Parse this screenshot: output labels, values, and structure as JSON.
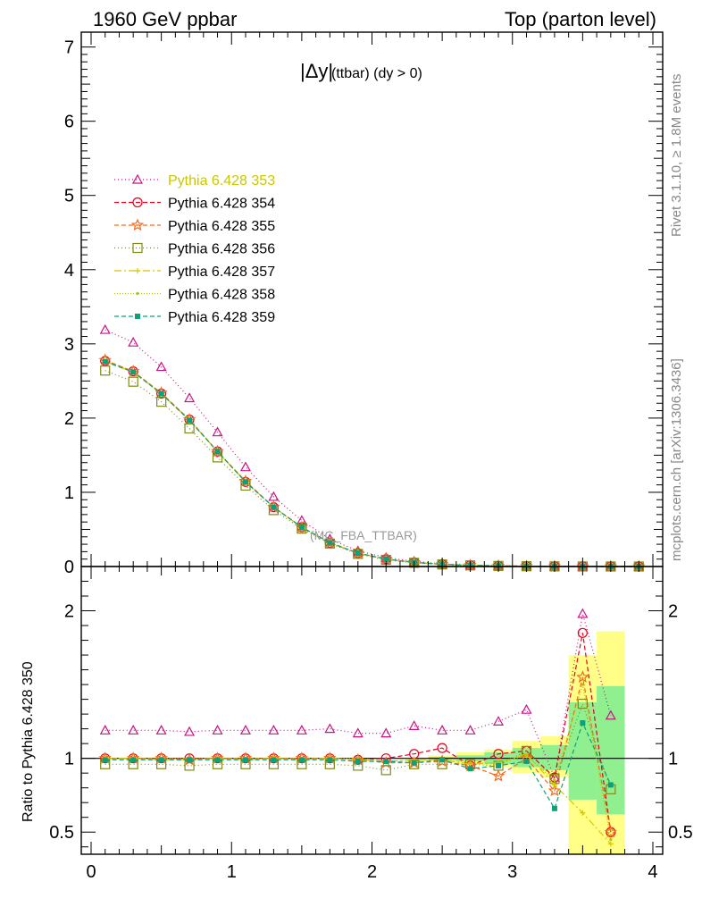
{
  "header": {
    "left": "1960 GeV ppbar",
    "right": "Top (parton level)"
  },
  "plot_title": {
    "main": "|Δy|",
    "sub": "(ttbar) (dy > 0)"
  },
  "side_labels": {
    "rivet": "Rivet 3.1.10, ≥ 1.8M events",
    "mcplots": "mcplots.cern.ch [arXiv:1306.3436]"
  },
  "analysis_label": "(MC_FBA_TTBAR)",
  "ratio_ylabel": "Ratio to Pythia 6.428 350",
  "colors": {
    "s353": "#c71585",
    "s354": "#e3001b",
    "s355": "#f26a1b",
    "s356": "#808a18",
    "s357": "#d8c800",
    "s358": "#b4c800",
    "s359": "#10a078",
    "band_yellow": "#ffff88",
    "band_green": "#90f090"
  },
  "chart_data": [
    {
      "type": "line",
      "panel": "main",
      "xlim": [
        -0.07,
        4.07
      ],
      "ylim": [
        0,
        7.2
      ],
      "yticks": [
        "0",
        "1",
        "2",
        "3",
        "4",
        "5",
        "6",
        "7"
      ],
      "x": [
        0.1,
        0.3,
        0.5,
        0.7,
        0.9,
        1.1,
        1.3,
        1.5,
        1.7,
        1.9,
        2.1,
        2.3,
        2.5,
        2.7,
        2.9,
        3.1,
        3.3,
        3.5,
        3.7,
        3.9
      ],
      "series": [
        {
          "name": "Pythia 6.428 353",
          "key": "s353",
          "marker": "triangle-open",
          "dash": "1,3",
          "values": [
            3.19,
            3.02,
            2.69,
            2.27,
            1.81,
            1.34,
            0.94,
            0.62,
            0.37,
            0.21,
            0.12,
            0.07,
            0.035,
            0.02,
            0.01,
            0.006,
            0.003,
            0.0015,
            0.0008,
            0.0003
          ]
        },
        {
          "name": "Pythia 6.428 354",
          "key": "s354",
          "marker": "circle-open",
          "dash": "5,3",
          "values": [
            2.77,
            2.63,
            2.33,
            1.98,
            1.55,
            1.14,
            0.8,
            0.53,
            0.32,
            0.18,
            0.1,
            0.055,
            0.03,
            0.016,
            0.008,
            0.004,
            0.002,
            0.001,
            0.0005,
            0.0002
          ]
        },
        {
          "name": "Pythia 6.428 355",
          "key": "s355",
          "marker": "star-open",
          "dash": "5,3",
          "values": [
            2.78,
            2.63,
            2.34,
            1.98,
            1.55,
            1.15,
            0.8,
            0.53,
            0.32,
            0.18,
            0.1,
            0.055,
            0.03,
            0.016,
            0.008,
            0.004,
            0.002,
            0.001,
            0.0005,
            0.0002
          ]
        },
        {
          "name": "Pythia 6.428 356",
          "key": "s356",
          "marker": "square-open",
          "dash": "1,3",
          "values": [
            2.64,
            2.49,
            2.22,
            1.86,
            1.47,
            1.09,
            0.76,
            0.51,
            0.31,
            0.17,
            0.09,
            0.05,
            0.028,
            0.015,
            0.008,
            0.004,
            0.002,
            0.001,
            0.0005,
            0.0002
          ]
        },
        {
          "name": "Pythia 6.428 357",
          "key": "s357",
          "marker": "cross",
          "dash": "8,3,2,3",
          "values": [
            2.76,
            2.62,
            2.33,
            1.97,
            1.55,
            1.14,
            0.8,
            0.53,
            0.32,
            0.18,
            0.1,
            0.055,
            0.03,
            0.016,
            0.008,
            0.004,
            0.002,
            0.001,
            0.0005,
            0.0002
          ]
        },
        {
          "name": "Pythia 6.428 358",
          "key": "s358",
          "marker": "dot",
          "dash": "1,2",
          "values": [
            2.77,
            2.63,
            2.33,
            1.98,
            1.55,
            1.14,
            0.8,
            0.53,
            0.32,
            0.18,
            0.1,
            0.055,
            0.03,
            0.016,
            0.008,
            0.004,
            0.002,
            0.001,
            0.0005,
            0.0002
          ]
        },
        {
          "name": "Pythia 6.428 359",
          "key": "s359",
          "marker": "square-filled",
          "dash": "5,3",
          "values": [
            2.76,
            2.62,
            2.33,
            1.97,
            1.55,
            1.14,
            0.8,
            0.53,
            0.32,
            0.18,
            0.1,
            0.055,
            0.03,
            0.016,
            0.008,
            0.004,
            0.002,
            0.001,
            0.0005,
            0.0002
          ]
        }
      ]
    },
    {
      "type": "line",
      "panel": "ratio",
      "xlim": [
        -0.07,
        4.07
      ],
      "ylim": [
        0.35,
        2.3
      ],
      "yticks": [
        0.5,
        1,
        2
      ],
      "ytick_labels": [
        "0.5",
        "1",
        "2"
      ],
      "xticks": [
        "0",
        "1",
        "2",
        "3",
        "4"
      ],
      "reference_line": 1,
      "x": [
        0.1,
        0.3,
        0.5,
        0.7,
        0.9,
        1.1,
        1.3,
        1.5,
        1.7,
        1.9,
        2.1,
        2.3,
        2.5,
        2.7,
        2.9,
        3.1,
        3.3,
        3.5,
        3.7
      ],
      "bands": {
        "edges": [
          2.4,
          2.6,
          2.8,
          3.0,
          3.2,
          3.4,
          3.6,
          3.8
        ],
        "yellow": [
          [
            0.98,
            1.02
          ],
          [
            0.96,
            1.04
          ],
          [
            0.94,
            1.06
          ],
          [
            0.9,
            1.12
          ],
          [
            0.87,
            1.15
          ],
          [
            0.35,
            1.7
          ],
          [
            0.35,
            1.86
          ]
        ],
        "green": [
          [
            0.99,
            1.01
          ],
          [
            0.98,
            1.02
          ],
          [
            0.96,
            1.04
          ],
          [
            0.94,
            1.07
          ],
          [
            0.92,
            1.09
          ],
          [
            0.72,
            1.38
          ],
          [
            0.62,
            1.49
          ]
        ]
      },
      "series": [
        {
          "key": "s353",
          "values": [
            1.19,
            1.19,
            1.19,
            1.18,
            1.19,
            1.19,
            1.19,
            1.19,
            1.2,
            1.17,
            1.17,
            1.22,
            1.19,
            1.19,
            1.25,
            1.33,
            0.87,
            1.98,
            1.29
          ]
        },
        {
          "key": "s354",
          "values": [
            1.0,
            1.0,
            1.0,
            1.0,
            1.0,
            1.0,
            1.0,
            1.0,
            1.0,
            0.99,
            1.0,
            1.03,
            1.07,
            0.95,
            1.03,
            1.05,
            0.87,
            1.85,
            0.5
          ]
        },
        {
          "key": "s355",
          "values": [
            1.0,
            1.0,
            1.0,
            0.99,
            1.0,
            1.0,
            1.0,
            1.0,
            1.0,
            0.99,
            0.97,
            0.97,
            0.98,
            0.95,
            0.88,
            1.0,
            0.78,
            1.55,
            0.5
          ]
        },
        {
          "key": "s356",
          "values": [
            0.96,
            0.96,
            0.96,
            0.95,
            0.96,
            0.96,
            0.96,
            0.96,
            0.96,
            0.95,
            0.92,
            0.96,
            0.96,
            0.96,
            0.95,
            1.05,
            0.86,
            1.37,
            0.79
          ]
        },
        {
          "key": "s357",
          "values": [
            1.0,
            1.0,
            0.99,
            0.99,
            1.0,
            0.99,
            1.0,
            0.99,
            1.0,
            0.99,
            0.98,
            0.99,
            0.99,
            0.96,
            0.97,
            1.03,
            0.82,
            0.63,
            0.42
          ]
        },
        {
          "key": "s358",
          "values": [
            1.0,
            1.0,
            1.0,
            1.0,
            1.0,
            1.0,
            1.0,
            1.0,
            1.0,
            1.0,
            0.98,
            0.99,
            0.99,
            0.97,
            0.97,
            1.02,
            0.85,
            1.5,
            0.45
          ]
        },
        {
          "key": "s359",
          "values": [
            0.99,
            0.99,
            0.99,
            0.99,
            0.99,
            0.99,
            0.99,
            0.99,
            0.99,
            0.98,
            0.98,
            0.97,
            0.99,
            0.93,
            0.95,
            0.98,
            0.66,
            1.24,
            0.82
          ]
        }
      ]
    }
  ]
}
